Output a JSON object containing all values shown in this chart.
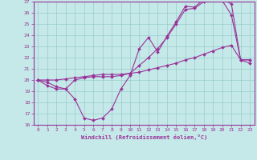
{
  "xlabel": "Windchill (Refroidissement éolien,°C)",
  "xlim": [
    -0.5,
    23.5
  ],
  "ylim": [
    16,
    27
  ],
  "yticks": [
    16,
    17,
    18,
    19,
    20,
    21,
    22,
    23,
    24,
    25,
    26,
    27
  ],
  "xticks": [
    0,
    1,
    2,
    3,
    4,
    5,
    6,
    7,
    8,
    9,
    10,
    11,
    12,
    13,
    14,
    15,
    16,
    17,
    18,
    19,
    20,
    21,
    22,
    23
  ],
  "bg_color": "#c5e8e8",
  "line_color": "#993399",
  "grid_color": "#99cccc",
  "line1_y": [
    20.0,
    19.5,
    19.2,
    19.2,
    18.3,
    16.6,
    16.4,
    16.6,
    17.4,
    19.2,
    20.4,
    22.8,
    23.8,
    22.5,
    23.9,
    25.2,
    26.6,
    26.5,
    27.2,
    27.2,
    27.1,
    25.8,
    21.8,
    21.8
  ],
  "line2_y": [
    20.0,
    19.8,
    19.4,
    19.2,
    20.0,
    20.2,
    20.3,
    20.3,
    20.3,
    20.4,
    20.6,
    21.3,
    22.0,
    22.8,
    23.8,
    25.0,
    26.3,
    26.4,
    27.0,
    27.2,
    27.2,
    26.8,
    21.8,
    21.8
  ],
  "line3_y": [
    20.0,
    20.0,
    20.0,
    20.1,
    20.2,
    20.3,
    20.4,
    20.5,
    20.5,
    20.5,
    20.6,
    20.7,
    20.9,
    21.1,
    21.3,
    21.5,
    21.8,
    22.0,
    22.3,
    22.6,
    22.9,
    23.1,
    21.8,
    21.5
  ]
}
